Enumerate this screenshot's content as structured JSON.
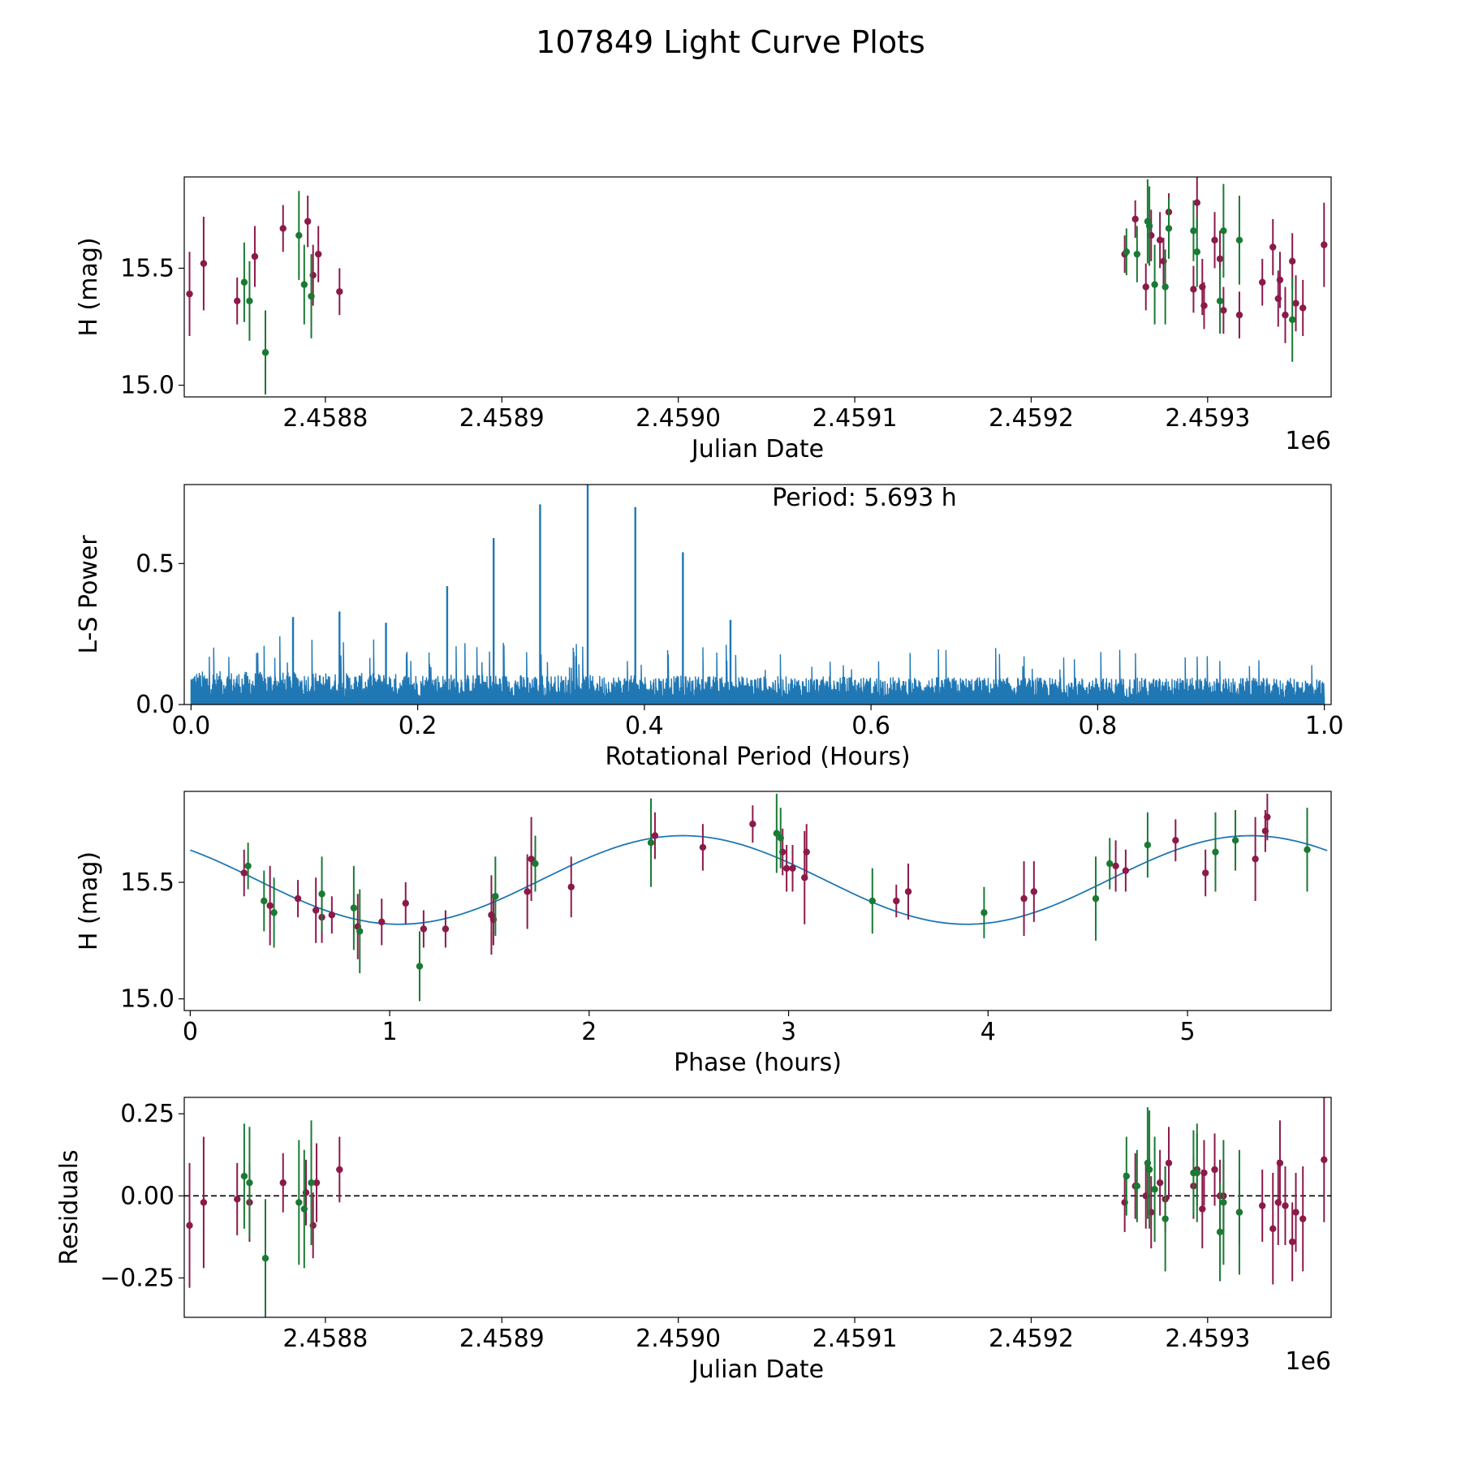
{
  "figure_title": "107849 Light Curve Plots",
  "colors": {
    "series_a": "#8b1a4a",
    "series_b": "#1a7a34",
    "curve": "#1f77b4",
    "axis": "#000000"
  },
  "chart_data": [
    {
      "type": "scatter",
      "name": "light-curve",
      "xlabel": "Julian Date",
      "ylabel": "H (mag)",
      "x_offset_label": "1e6",
      "xlim": [
        2.45872,
        2.45937
      ],
      "ylim": [
        14.95,
        15.89
      ],
      "xticks": [
        "2.4588",
        "2.4589",
        "2.4590",
        "2.4591",
        "2.4592",
        "2.4593"
      ],
      "yticks": [
        "15.0",
        "15.5"
      ],
      "xtick_values": [
        2.4588,
        2.4589,
        2.459,
        2.4591,
        2.4592,
        2.4593
      ],
      "ytick_values": [
        15.0,
        15.5
      ],
      "series": [
        {
          "name": "purple",
          "points": [
            [
              2.458723,
              15.39,
              0.18
            ],
            [
              2.458731,
              15.52,
              0.2
            ],
            [
              2.45875,
              15.36,
              0.1
            ],
            [
              2.45876,
              15.55,
              0.13
            ],
            [
              2.458776,
              15.67,
              0.1
            ],
            [
              2.45879,
              15.7,
              0.11
            ],
            [
              2.458793,
              15.47,
              0.13
            ],
            [
              2.458796,
              15.56,
              0.12
            ],
            [
              2.458808,
              15.4,
              0.1
            ],
            [
              2.459253,
              15.56,
              0.08
            ],
            [
              2.459259,
              15.71,
              0.08
            ],
            [
              2.459265,
              15.42,
              0.1
            ],
            [
              2.459268,
              15.64,
              0.11
            ],
            [
              2.459273,
              15.62,
              0.12
            ],
            [
              2.459275,
              15.53,
              0.1
            ],
            [
              2.459278,
              15.74,
              0.08
            ],
            [
              2.459292,
              15.41,
              0.1
            ],
            [
              2.459294,
              15.78,
              0.11
            ],
            [
              2.459297,
              15.42,
              0.12
            ],
            [
              2.459298,
              15.34,
              0.1
            ],
            [
              2.459304,
              15.62,
              0.12
            ],
            [
              2.459307,
              15.54,
              0.12
            ],
            [
              2.459309,
              15.32,
              0.1
            ],
            [
              2.459318,
              15.3,
              0.1
            ],
            [
              2.459331,
              15.44,
              0.1
            ],
            [
              2.459337,
              15.59,
              0.12
            ],
            [
              2.45934,
              15.37,
              0.12
            ],
            [
              2.459341,
              15.45,
              0.12
            ],
            [
              2.459344,
              15.3,
              0.12
            ],
            [
              2.459348,
              15.53,
              0.12
            ],
            [
              2.45935,
              15.35,
              0.12
            ],
            [
              2.459354,
              15.33,
              0.12
            ],
            [
              2.459366,
              15.6,
              0.18
            ]
          ]
        },
        {
          "name": "green",
          "points": [
            [
              2.458754,
              15.44,
              0.17
            ],
            [
              2.458757,
              15.36,
              0.17
            ],
            [
              2.458766,
              15.14,
              0.18
            ],
            [
              2.458785,
              15.64,
              0.19
            ],
            [
              2.458788,
              15.43,
              0.17
            ],
            [
              2.458792,
              15.38,
              0.18
            ],
            [
              2.459254,
              15.57,
              0.1
            ],
            [
              2.45926,
              15.56,
              0.12
            ],
            [
              2.459266,
              15.7,
              0.18
            ],
            [
              2.459267,
              15.68,
              0.17
            ],
            [
              2.45927,
              15.43,
              0.17
            ],
            [
              2.459276,
              15.42,
              0.16
            ],
            [
              2.459278,
              15.67,
              0.13
            ],
            [
              2.459292,
              15.66,
              0.13
            ],
            [
              2.459294,
              15.57,
              0.15
            ],
            [
              2.459307,
              15.36,
              0.14
            ],
            [
              2.459309,
              15.66,
              0.2
            ],
            [
              2.459318,
              15.62,
              0.19
            ],
            [
              2.459348,
              15.28,
              0.18
            ]
          ]
        }
      ]
    },
    {
      "type": "line",
      "name": "periodogram",
      "xlabel": "Rotational Period (Hours)",
      "ylabel": "L-S Power",
      "annotation": "Period: 5.693 h",
      "xlim": [
        -0.006,
        1.006
      ],
      "ylim": [
        0.0,
        0.78
      ],
      "xticks": [
        "0.0",
        "0.2",
        "0.4",
        "0.6",
        "0.8",
        "1.0"
      ],
      "yticks": [
        "0.0",
        "0.5"
      ],
      "xtick_values": [
        0.0,
        0.2,
        0.4,
        0.6,
        0.8,
        1.0
      ],
      "ytick_values": [
        0.0,
        0.5
      ],
      "noise_level": 0.12,
      "peaks": [
        [
          0.35,
          0.78
        ],
        [
          0.308,
          0.71
        ],
        [
          0.392,
          0.7
        ],
        [
          0.267,
          0.59
        ],
        [
          0.434,
          0.54
        ],
        [
          0.226,
          0.42
        ],
        [
          0.131,
          0.33
        ],
        [
          0.09,
          0.31
        ],
        [
          0.476,
          0.3
        ],
        [
          0.172,
          0.29
        ]
      ]
    },
    {
      "type": "scatter",
      "name": "phase-fold",
      "xlabel": "Phase (hours)",
      "ylabel": "H (mag)",
      "xlim": [
        -0.03,
        5.72
      ],
      "ylim": [
        14.95,
        15.89
      ],
      "xticks": [
        "0",
        "1",
        "2",
        "3",
        "4",
        "5"
      ],
      "yticks": [
        "15.0",
        "15.5"
      ],
      "xtick_values": [
        0,
        1,
        2,
        3,
        4,
        5
      ],
      "ytick_values": [
        15.0,
        15.5
      ],
      "fit": {
        "mean": 15.51,
        "amplitude": 0.19,
        "period_hours": 2.8465,
        "peak_phase": 2.47
      },
      "series": [
        {
          "name": "purple",
          "points": [
            [
              0.27,
              15.54,
              0.1
            ],
            [
              0.4,
              15.4,
              0.17
            ],
            [
              0.54,
              15.43,
              0.08
            ],
            [
              0.63,
              15.38,
              0.14
            ],
            [
              0.66,
              15.35,
              0.11
            ],
            [
              0.71,
              15.36,
              0.08
            ],
            [
              0.84,
              15.31,
              0.14
            ],
            [
              0.96,
              15.33,
              0.1
            ],
            [
              1.08,
              15.41,
              0.09
            ],
            [
              1.17,
              15.3,
              0.08
            ],
            [
              1.28,
              15.3,
              0.08
            ],
            [
              1.51,
              15.36,
              0.17
            ],
            [
              1.52,
              15.34,
              0.11
            ],
            [
              1.69,
              15.46,
              0.16
            ],
            [
              1.71,
              15.6,
              0.18
            ],
            [
              1.91,
              15.48,
              0.13
            ],
            [
              2.33,
              15.7,
              0.1
            ],
            [
              2.57,
              15.65,
              0.1
            ],
            [
              2.82,
              15.75,
              0.08
            ],
            [
              2.97,
              15.63,
              0.1
            ],
            [
              2.99,
              15.56,
              0.1
            ],
            [
              3.02,
              15.56,
              0.1
            ],
            [
              3.08,
              15.52,
              0.2
            ],
            [
              3.09,
              15.63,
              0.12
            ],
            [
              3.54,
              15.42,
              0.07
            ],
            [
              3.6,
              15.46,
              0.12
            ],
            [
              4.18,
              15.43,
              0.16
            ],
            [
              4.23,
              15.46,
              0.13
            ],
            [
              4.64,
              15.57,
              0.11
            ],
            [
              4.69,
              15.55,
              0.09
            ],
            [
              4.94,
              15.68,
              0.09
            ],
            [
              5.09,
              15.54,
              0.1
            ],
            [
              5.34,
              15.6,
              0.18
            ],
            [
              5.39,
              15.72,
              0.09
            ],
            [
              5.4,
              15.78,
              0.1
            ]
          ]
        },
        {
          "name": "green",
          "points": [
            [
              0.29,
              15.57,
              0.1
            ],
            [
              0.37,
              15.42,
              0.13
            ],
            [
              0.42,
              15.37,
              0.15
            ],
            [
              0.66,
              15.45,
              0.16
            ],
            [
              0.82,
              15.39,
              0.18
            ],
            [
              0.85,
              15.29,
              0.18
            ],
            [
              1.15,
              15.14,
              0.15
            ],
            [
              1.53,
              15.44,
              0.17
            ],
            [
              1.73,
              15.58,
              0.12
            ],
            [
              2.31,
              15.67,
              0.19
            ],
            [
              2.94,
              15.71,
              0.17
            ],
            [
              2.96,
              15.69,
              0.13
            ],
            [
              3.42,
              15.42,
              0.14
            ],
            [
              3.98,
              15.37,
              0.11
            ],
            [
              4.54,
              15.43,
              0.18
            ],
            [
              4.61,
              15.58,
              0.11
            ],
            [
              4.8,
              15.66,
              0.14
            ],
            [
              5.14,
              15.63,
              0.17
            ],
            [
              5.24,
              15.68,
              0.13
            ],
            [
              5.6,
              15.64,
              0.18
            ]
          ]
        }
      ]
    },
    {
      "type": "scatter",
      "name": "residuals",
      "xlabel": "Julian Date",
      "ylabel": "Residuals",
      "x_offset_label": "1e6",
      "xlim": [
        2.45872,
        2.45937
      ],
      "ylim": [
        -0.37,
        0.3
      ],
      "xticks": [
        "2.4588",
        "2.4589",
        "2.4590",
        "2.4591",
        "2.4592",
        "2.4593"
      ],
      "yticks": [
        "0.25",
        "0.00",
        "−0.25"
      ],
      "xtick_values": [
        2.4588,
        2.4589,
        2.459,
        2.4591,
        2.4592,
        2.4593
      ],
      "ytick_values": [
        0.25,
        0.0,
        -0.25
      ],
      "reference_line": 0.0,
      "series": [
        {
          "name": "purple",
          "points": [
            [
              2.458723,
              -0.09,
              0.19
            ],
            [
              2.458731,
              -0.02,
              0.2
            ],
            [
              2.45875,
              -0.01,
              0.11
            ],
            [
              2.458757,
              -0.02,
              0.12
            ],
            [
              2.458776,
              0.04,
              0.09
            ],
            [
              2.458789,
              0.01,
              0.1
            ],
            [
              2.458793,
              -0.09,
              0.1
            ],
            [
              2.458795,
              0.04,
              0.12
            ],
            [
              2.458808,
              0.08,
              0.1
            ],
            [
              2.459253,
              -0.02,
              0.09
            ],
            [
              2.459259,
              0.03,
              0.1
            ],
            [
              2.459265,
              0.0,
              0.1
            ],
            [
              2.459268,
              -0.05,
              0.11
            ],
            [
              2.459273,
              0.04,
              0.1
            ],
            [
              2.459276,
              -0.01,
              0.1
            ],
            [
              2.459278,
              0.1,
              0.11
            ],
            [
              2.459292,
              0.03,
              0.1
            ],
            [
              2.459294,
              0.08,
              0.11
            ],
            [
              2.459297,
              -0.04,
              0.12
            ],
            [
              2.459298,
              0.07,
              0.1
            ],
            [
              2.459304,
              0.08,
              0.11
            ],
            [
              2.459307,
              0.0,
              0.11
            ],
            [
              2.459309,
              0.0,
              0.11
            ],
            [
              2.459318,
              -0.05,
              0.1
            ],
            [
              2.459331,
              -0.03,
              0.11
            ],
            [
              2.459337,
              -0.1,
              0.17
            ],
            [
              2.45934,
              -0.02,
              0.13
            ],
            [
              2.459341,
              0.1,
              0.13
            ],
            [
              2.459344,
              -0.03,
              0.12
            ],
            [
              2.459348,
              -0.14,
              0.12
            ],
            [
              2.45935,
              -0.05,
              0.12
            ],
            [
              2.459354,
              -0.07,
              0.16
            ],
            [
              2.459366,
              0.11,
              0.19
            ]
          ]
        },
        {
          "name": "green",
          "points": [
            [
              2.458754,
              0.06,
              0.16
            ],
            [
              2.458757,
              0.04,
              0.17
            ],
            [
              2.458766,
              -0.19,
              0.18
            ],
            [
              2.458785,
              -0.02,
              0.19
            ],
            [
              2.458788,
              -0.04,
              0.18
            ],
            [
              2.458792,
              0.04,
              0.19
            ],
            [
              2.459254,
              0.06,
              0.12
            ],
            [
              2.45926,
              0.03,
              0.11
            ],
            [
              2.459266,
              0.1,
              0.17
            ],
            [
              2.459267,
              0.08,
              0.18
            ],
            [
              2.45927,
              0.02,
              0.16
            ],
            [
              2.459276,
              -0.07,
              0.16
            ],
            [
              2.459292,
              0.07,
              0.13
            ],
            [
              2.459294,
              0.07,
              0.15
            ],
            [
              2.459307,
              -0.11,
              0.15
            ],
            [
              2.459309,
              -0.02,
              0.19
            ],
            [
              2.459318,
              -0.05,
              0.19
            ]
          ]
        }
      ]
    }
  ]
}
